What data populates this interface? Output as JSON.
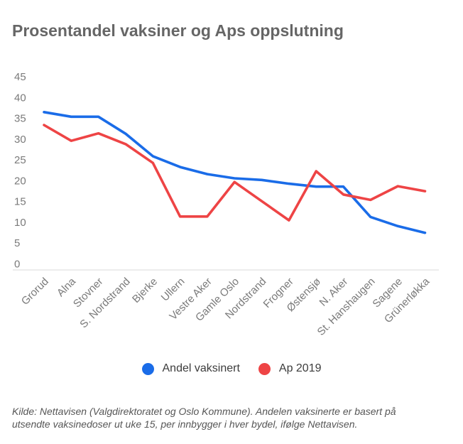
{
  "title": "Prosentandel vaksiner og Aps oppslutning",
  "legend": {
    "items": [
      {
        "label": "Andel vaksinert",
        "color": "#1a6ce8"
      },
      {
        "label": "Ap 2019",
        "color": "#ee4445"
      }
    ]
  },
  "caption": {
    "line1": "Kilde: Nettavisen (Valgdirektoratet og Oslo Kommune). Andelen vaksinerte er basert på",
    "line2": "utsendte vaksinedoser ut uke 15, per innbygger i hver bydel, ifølge Nettavisen."
  },
  "colors": {
    "axis_line": "#e7e7e7",
    "tick_text": "#7a7a7a",
    "title_text": "#666666"
  },
  "chart_data": {
    "type": "line",
    "title": "Prosentandel vaksiner og Aps oppslutning",
    "xlabel": "",
    "ylabel": "",
    "ylim": [
      0,
      45
    ],
    "yticks": [
      0,
      5,
      10,
      15,
      20,
      25,
      30,
      35,
      40,
      45
    ],
    "grid": false,
    "legend_position": "bottom",
    "categories": [
      "Grorud",
      "Alna",
      "Stovner",
      "S. Nordstrand",
      "Bjerke",
      "Ullern",
      "Vestre Aker",
      "Gamle Oslo",
      "Nordstrand",
      "Frogner",
      "Østensjø",
      "N. Aker",
      "St. Hanshaugen",
      "Sagene",
      "Grünerløkka"
    ],
    "series": [
      {
        "name": "Andel vaksinert",
        "color": "#1a6ce8",
        "values": [
          36.4,
          35.3,
          35.3,
          31.2,
          25.8,
          23.2,
          21.5,
          20.5,
          20.1,
          19.2,
          18.5,
          18.5,
          11.2,
          9.0,
          7.4
        ]
      },
      {
        "name": "Ap 2019",
        "color": "#ee4445",
        "values": [
          33.3,
          29.5,
          31.3,
          28.7,
          24.2,
          11.3,
          11.3,
          19.6,
          15.0,
          10.4,
          22.2,
          16.6,
          15.3,
          18.6,
          17.4
        ]
      }
    ]
  }
}
